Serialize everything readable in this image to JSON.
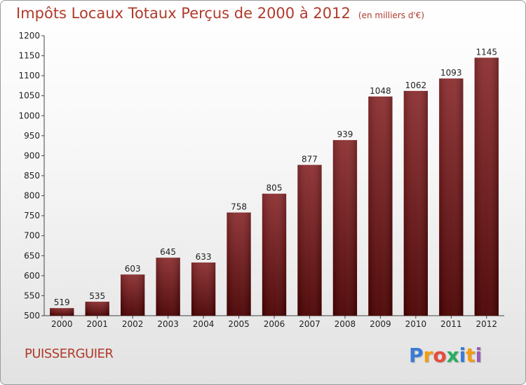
{
  "chart_data": {
    "type": "bar",
    "title": "Impôts Locaux Totaux Perçus de 2000 à 2012",
    "unit": "(en milliers d'€)",
    "categories": [
      "2000",
      "2001",
      "2002",
      "2003",
      "2004",
      "2005",
      "2006",
      "2007",
      "2008",
      "2009",
      "2010",
      "2011",
      "2012"
    ],
    "values": [
      519,
      535,
      603,
      645,
      633,
      758,
      805,
      877,
      939,
      1048,
      1062,
      1093,
      1145
    ],
    "ylim": [
      500,
      1200
    ],
    "yticks": [
      500,
      550,
      600,
      650,
      700,
      750,
      800,
      850,
      900,
      950,
      1000,
      1050,
      1100,
      1150,
      1200
    ],
    "xlabel": "",
    "ylabel": "",
    "grid": false,
    "colors": {
      "bar_top": "#8c2e30",
      "bar_bottom": "#4a0000",
      "title": "#b03a2a"
    }
  },
  "commune": "PUISSERGUIER",
  "logo": {
    "letters": [
      "P",
      "r",
      "o",
      "x",
      "i",
      "t",
      "i"
    ],
    "colors": [
      "#3a7bd5",
      "#f39c12",
      "#e74c3c",
      "#27ae60",
      "#3a7bd5",
      "#f39c12",
      "#9b59b6"
    ]
  }
}
